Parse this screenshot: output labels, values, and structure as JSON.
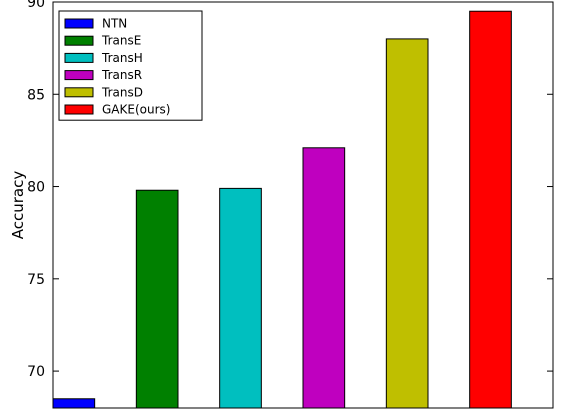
{
  "chart_data": {
    "type": "bar",
    "title": "",
    "xlabel": "",
    "ylabel": "Accuracy",
    "ylim": [
      68,
      90
    ],
    "yticks": [
      70,
      75,
      80,
      85,
      90
    ],
    "grid": false,
    "legend_position": "top-left",
    "series": [
      {
        "name": "NTN",
        "value": 68.5,
        "color": "#0000ff"
      },
      {
        "name": "TransE",
        "value": 79.8,
        "color": "#008000"
      },
      {
        "name": "TransH",
        "value": 79.9,
        "color": "#00bfbf"
      },
      {
        "name": "TransR",
        "value": 82.1,
        "color": "#bf00bf"
      },
      {
        "name": "TransD",
        "value": 88.0,
        "color": "#bfbf00"
      },
      {
        "name": "GAKE(ours)",
        "value": 89.5,
        "color": "#ff0000"
      }
    ]
  }
}
